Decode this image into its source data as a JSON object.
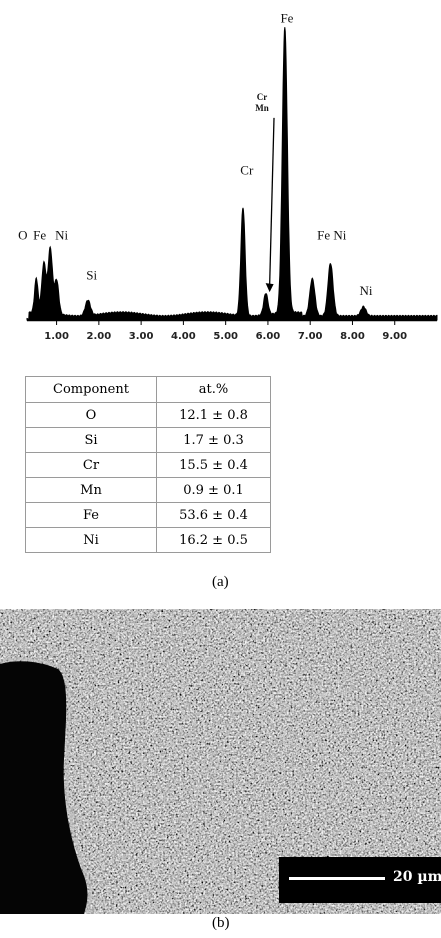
{
  "chart_data": {
    "type": "line",
    "title": "",
    "xlabel": "",
    "ylabel": "",
    "x_ticks": [
      "1.00",
      "2.00",
      "3.00",
      "4.00",
      "5.00",
      "6.00",
      "7.00",
      "8.00",
      "9.00"
    ],
    "xlim": [
      0.3,
      10.0
    ],
    "ylim": [
      0,
      100
    ],
    "peaks": [
      {
        "center": 0.52,
        "height": 11,
        "width": 0.04
      },
      {
        "center": 0.7,
        "height": 16,
        "width": 0.05
      },
      {
        "center": 0.85,
        "height": 21,
        "width": 0.05
      },
      {
        "center": 1.0,
        "height": 11,
        "width": 0.05
      },
      {
        "center": 1.74,
        "height": 5,
        "width": 0.06
      },
      {
        "center": 5.41,
        "height": 35,
        "width": 0.05
      },
      {
        "center": 5.95,
        "height": 7,
        "width": 0.05
      },
      {
        "center": 6.4,
        "height": 92,
        "width": 0.06
      },
      {
        "center": 7.05,
        "height": 12,
        "width": 0.06
      },
      {
        "center": 7.48,
        "height": 17,
        "width": 0.06
      },
      {
        "center": 8.26,
        "height": 3,
        "width": 0.06
      }
    ],
    "peak_labels": [
      {
        "text": "O",
        "x": 0.2,
        "y": 26
      },
      {
        "text": "Fe",
        "x": 0.6,
        "y": 26
      },
      {
        "text": "Ni",
        "x": 1.12,
        "y": 26
      },
      {
        "text": "Si",
        "x": 1.83,
        "y": 13
      },
      {
        "text": "Cr",
        "x": 5.5,
        "y": 47
      },
      {
        "text": "Fe",
        "x": 6.45,
        "y": 96
      },
      {
        "text": "Fe Ni",
        "x": 7.51,
        "y": 26
      },
      {
        "text": "Ni",
        "x": 8.32,
        "y": 8
      }
    ],
    "arrow_label": {
      "lines": [
        "Cr",
        "Mn"
      ],
      "x": 5.86,
      "y": 71,
      "target_x": 6.04,
      "target_y": 9
    }
  },
  "table": {
    "headers": [
      "Component",
      "at.%"
    ],
    "rows": [
      [
        "O",
        "12.1 ± 0.8"
      ],
      [
        "Si",
        "1.7 ± 0.3"
      ],
      [
        "Cr",
        "15.5 ± 0.4"
      ],
      [
        "Mn",
        "0.9 ± 0.1"
      ],
      [
        "Fe",
        "53.6 ± 0.4"
      ],
      [
        "Ni",
        "16.2 ± 0.5"
      ]
    ]
  },
  "captions": {
    "a": "(a)",
    "b": "(b)"
  },
  "sem": {
    "scale_label": "20 µm",
    "background": "#808080",
    "edge_color": "#050505"
  }
}
